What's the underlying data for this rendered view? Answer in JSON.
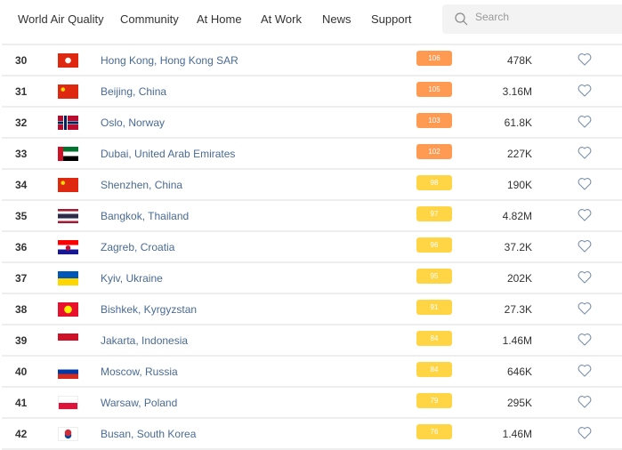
{
  "nav": {
    "items": [
      "World Air Quality",
      "Community",
      "At Home",
      "At Work",
      "News",
      "Support"
    ],
    "search_placeholder": "Search"
  },
  "colors": {
    "orange": "#ff9a52",
    "yellow": "#ffd545",
    "link": "#4a6a95"
  },
  "rows": [
    {
      "rank": "30",
      "flag": "hong-kong",
      "city": "Hong Kong, Hong Kong SAR",
      "aqi": "106",
      "level": "orange",
      "population": "478K"
    },
    {
      "rank": "31",
      "flag": "china",
      "city": "Beijing, China",
      "aqi": "105",
      "level": "orange",
      "population": "3.16M"
    },
    {
      "rank": "32",
      "flag": "norway",
      "city": "Oslo, Norway",
      "aqi": "103",
      "level": "orange",
      "population": "61.8K"
    },
    {
      "rank": "33",
      "flag": "uae",
      "city": "Dubai, United Arab Emirates",
      "aqi": "102",
      "level": "orange",
      "population": "227K"
    },
    {
      "rank": "34",
      "flag": "china",
      "city": "Shenzhen, China",
      "aqi": "98",
      "level": "yellow",
      "population": "190K"
    },
    {
      "rank": "35",
      "flag": "thailand",
      "city": "Bangkok, Thailand",
      "aqi": "97",
      "level": "yellow",
      "population": "4.82M"
    },
    {
      "rank": "36",
      "flag": "croatia",
      "city": "Zagreb, Croatia",
      "aqi": "96",
      "level": "yellow",
      "population": "37.2K"
    },
    {
      "rank": "37",
      "flag": "ukraine",
      "city": "Kyiv, Ukraine",
      "aqi": "95",
      "level": "yellow",
      "population": "202K"
    },
    {
      "rank": "38",
      "flag": "kyrgyzstan",
      "city": "Bishkek, Kyrgyzstan",
      "aqi": "91",
      "level": "yellow",
      "population": "27.3K"
    },
    {
      "rank": "39",
      "flag": "indonesia",
      "city": "Jakarta, Indonesia",
      "aqi": "84",
      "level": "yellow",
      "population": "1.46M"
    },
    {
      "rank": "40",
      "flag": "russia",
      "city": "Moscow, Russia",
      "aqi": "84",
      "level": "yellow",
      "population": "646K"
    },
    {
      "rank": "41",
      "flag": "poland",
      "city": "Warsaw, Poland",
      "aqi": "79",
      "level": "yellow",
      "population": "295K"
    },
    {
      "rank": "42",
      "flag": "south-korea",
      "city": "Busan, South Korea",
      "aqi": "76",
      "level": "yellow",
      "population": "1.46M"
    }
  ]
}
